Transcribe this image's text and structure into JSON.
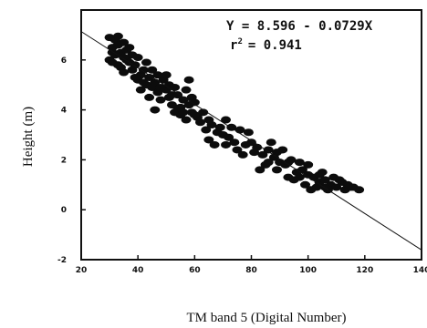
{
  "chart_data": {
    "type": "scatter",
    "xlabel": "TM band 5 (Digital Number)",
    "ylabel": "Height (m)",
    "xlim": [
      20,
      140
    ],
    "ylim": [
      -2,
      8
    ],
    "x_ticks": [
      "20",
      "40",
      "60",
      "80",
      "100",
      "120",
      "140"
    ],
    "y_ticks": [
      "-2",
      "0",
      "2",
      "4",
      "6"
    ],
    "annotations": {
      "equation": "Y = 8.596 - 0.0729X",
      "r2_label": "r",
      "r2_sup": "2",
      "r2_value": "= 0.941"
    },
    "regression": {
      "intercept": 8.596,
      "slope": -0.0729
    },
    "series": [
      {
        "points": [
          [
            30,
            6.9
          ],
          [
            31,
            6.5
          ],
          [
            32,
            6.8
          ],
          [
            33,
            6.6
          ],
          [
            34,
            6.3
          ],
          [
            35,
            6.7
          ],
          [
            32,
            6.2
          ],
          [
            36,
            6.0
          ],
          [
            30,
            6.0
          ],
          [
            33,
            5.8
          ],
          [
            35,
            5.5
          ],
          [
            37,
            5.9
          ],
          [
            38,
            5.6
          ],
          [
            36,
            6.4
          ],
          [
            39,
            5.8
          ],
          [
            40,
            6.1
          ],
          [
            31,
            5.9
          ],
          [
            34,
            5.7
          ],
          [
            38,
            6.2
          ],
          [
            41,
            5.4
          ],
          [
            40,
            5.2
          ],
          [
            42,
            5.6
          ],
          [
            43,
            5.0
          ],
          [
            41,
            4.8
          ],
          [
            44,
            5.3
          ],
          [
            45,
            4.9
          ],
          [
            46,
            5.1
          ],
          [
            47,
            4.7
          ],
          [
            44,
            4.5
          ],
          [
            48,
            4.4
          ],
          [
            50,
            4.8
          ],
          [
            49,
            5.2
          ],
          [
            51,
            4.5
          ],
          [
            52,
            4.2
          ],
          [
            53,
            4.9
          ],
          [
            54,
            4.6
          ],
          [
            55,
            4.1
          ],
          [
            56,
            4.4
          ],
          [
            57,
            4.8
          ],
          [
            58,
            4.2
          ],
          [
            55,
            3.8
          ],
          [
            59,
            3.9
          ],
          [
            60,
            4.3
          ],
          [
            57,
            3.6
          ],
          [
            61,
            3.7
          ],
          [
            58,
            5.2
          ],
          [
            50,
            5.4
          ],
          [
            46,
            4.0
          ],
          [
            53,
            3.9
          ],
          [
            45,
            5.6
          ],
          [
            62,
            3.5
          ],
          [
            64,
            3.2
          ],
          [
            66,
            3.4
          ],
          [
            68,
            3.1
          ],
          [
            70,
            3.0
          ],
          [
            65,
            2.8
          ],
          [
            72,
            2.9
          ],
          [
            74,
            2.7
          ],
          [
            76,
            3.2
          ],
          [
            78,
            2.6
          ],
          [
            75,
            2.4
          ],
          [
            80,
            2.7
          ],
          [
            79,
            3.1
          ],
          [
            73,
            3.3
          ],
          [
            77,
            2.2
          ],
          [
            82,
            2.5
          ],
          [
            84,
            2.2
          ],
          [
            86,
            2.4
          ],
          [
            85,
            1.8
          ],
          [
            88,
            2.1
          ],
          [
            90,
            1.9
          ],
          [
            89,
            1.6
          ],
          [
            92,
            1.8
          ],
          [
            94,
            2.0
          ],
          [
            96,
            1.5
          ],
          [
            95,
            1.2
          ],
          [
            98,
            1.6
          ],
          [
            100,
            1.4
          ],
          [
            99,
            1.0
          ],
          [
            102,
            1.3
          ],
          [
            104,
            1.1
          ],
          [
            103,
            0.9
          ],
          [
            106,
            1.2
          ],
          [
            108,
            1.0
          ],
          [
            110,
            0.9
          ],
          [
            112,
            1.1
          ],
          [
            115,
            0.9
          ],
          [
            118,
            0.8
          ],
          [
            97,
            1.9
          ],
          [
            101,
            0.8
          ],
          [
            105,
            1.5
          ],
          [
            107,
            0.8
          ],
          [
            109,
            1.3
          ],
          [
            93,
            1.3
          ],
          [
            87,
            2.7
          ],
          [
            71,
            3.6
          ],
          [
            67,
            2.6
          ],
          [
            83,
            1.6
          ],
          [
            91,
            2.4
          ],
          [
            113,
            0.8
          ],
          [
            31,
            6.3
          ],
          [
            33,
            6.95
          ],
          [
            35,
            6.1
          ],
          [
            37,
            6.5
          ],
          [
            39,
            5.3
          ],
          [
            42,
            5.1
          ],
          [
            43,
            5.9
          ],
          [
            47,
            5.4
          ],
          [
            48,
            4.9
          ],
          [
            51,
            5.0
          ],
          [
            52,
            4.6
          ],
          [
            54,
            4.0
          ],
          [
            56,
            3.9
          ],
          [
            59,
            4.5
          ],
          [
            60,
            3.8
          ],
          [
            63,
            3.9
          ],
          [
            65,
            3.6
          ],
          [
            69,
            3.3
          ],
          [
            71,
            2.6
          ],
          [
            81,
            2.3
          ],
          [
            86,
            1.9
          ],
          [
            89,
            2.3
          ],
          [
            93,
            1.9
          ],
          [
            97,
            1.3
          ],
          [
            100,
            1.8
          ],
          [
            104,
            1.4
          ],
          [
            106,
            0.9
          ],
          [
            111,
            1.2
          ],
          [
            114,
            1.0
          ],
          [
            116,
            0.9
          ]
        ]
      }
    ]
  }
}
